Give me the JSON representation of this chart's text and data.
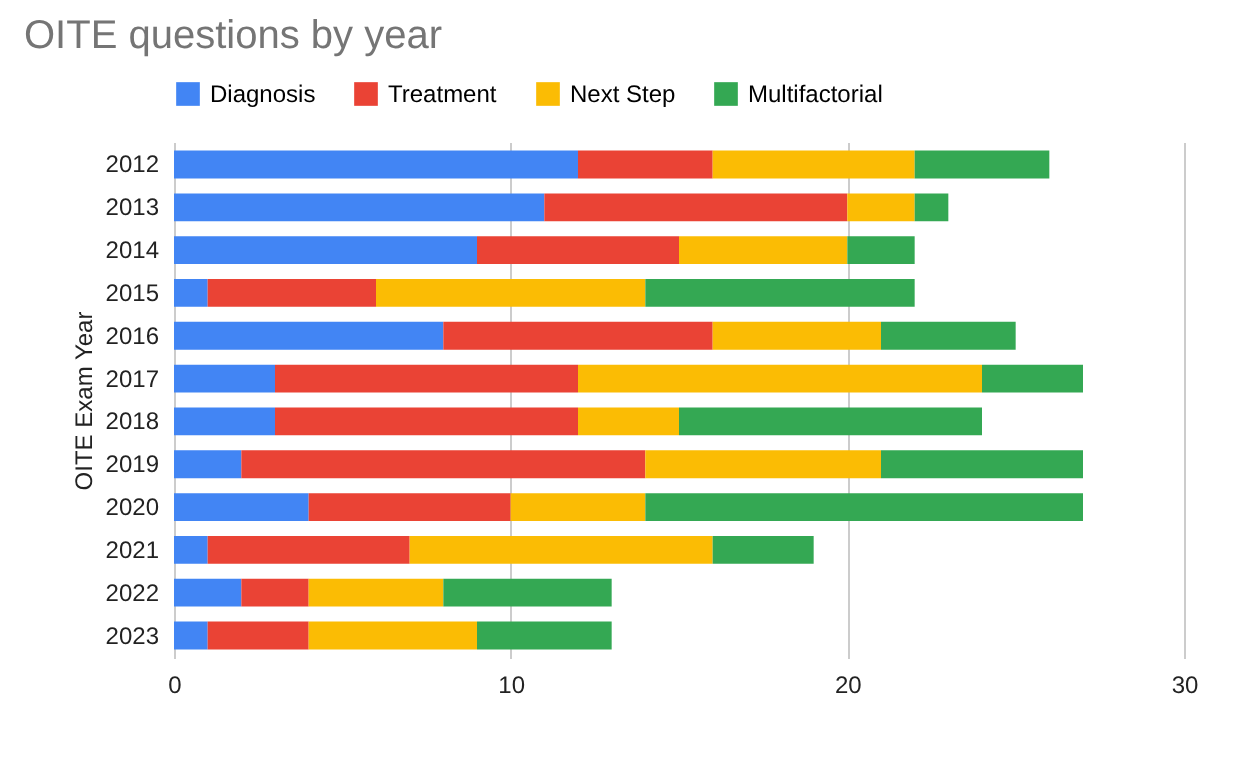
{
  "chart_data": {
    "type": "bar",
    "orientation": "horizontal",
    "stacked": true,
    "title": "OITE questions by year",
    "ylabel": "OITE Exam Year",
    "categories": [
      "2012",
      "2013",
      "2014",
      "2015",
      "2016",
      "2017",
      "2018",
      "2019",
      "2020",
      "2021",
      "2022",
      "2023"
    ],
    "series": [
      {
        "name": "Diagnosis",
        "color": "#4285f4",
        "values": [
          12,
          11,
          9,
          1,
          8,
          3,
          3,
          2,
          4,
          1,
          2,
          1
        ]
      },
      {
        "name": "Treatment",
        "color": "#ea4335",
        "values": [
          4,
          9,
          6,
          5,
          8,
          9,
          9,
          12,
          6,
          6,
          2,
          3
        ]
      },
      {
        "name": "Next Step",
        "color": "#fbbc04",
        "values": [
          6,
          2,
          5,
          8,
          5,
          12,
          3,
          7,
          4,
          9,
          4,
          5
        ]
      },
      {
        "name": "Multifactorial",
        "color": "#34a853",
        "values": [
          4,
          1,
          2,
          8,
          4,
          3,
          9,
          6,
          13,
          3,
          5,
          4
        ]
      }
    ],
    "xlim": [
      0,
      30
    ],
    "xticks": [
      0,
      10,
      20,
      30
    ],
    "grid": "x",
    "legend": "top"
  }
}
